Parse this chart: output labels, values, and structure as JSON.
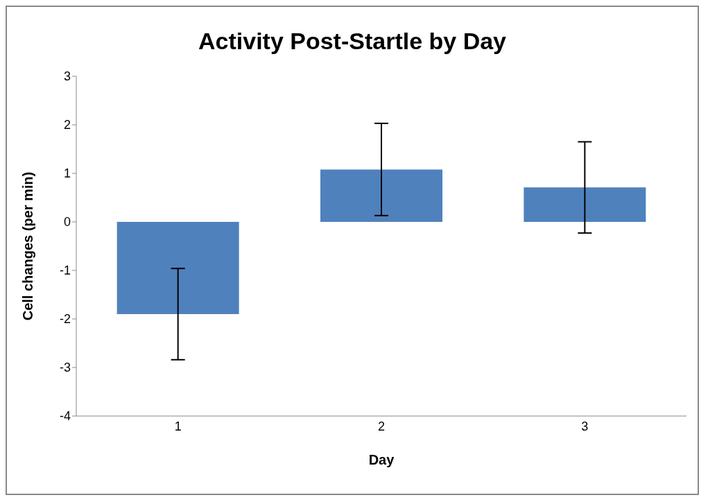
{
  "chart_data": {
    "type": "bar",
    "title": "Activity Post-Startle by Day",
    "xlabel": "Day",
    "ylabel": "Cell changes (per min)",
    "categories": [
      "1",
      "2",
      "3"
    ],
    "values": [
      -1.9,
      1.08,
      0.71
    ],
    "errors": [
      0.94,
      0.95,
      0.94
    ],
    "color": "#4f81bd",
    "ylim": [
      -4,
      3
    ],
    "yticks": [
      -4,
      -3,
      -2,
      -1,
      0,
      1,
      2,
      3
    ],
    "grid": false,
    "legend": false
  }
}
